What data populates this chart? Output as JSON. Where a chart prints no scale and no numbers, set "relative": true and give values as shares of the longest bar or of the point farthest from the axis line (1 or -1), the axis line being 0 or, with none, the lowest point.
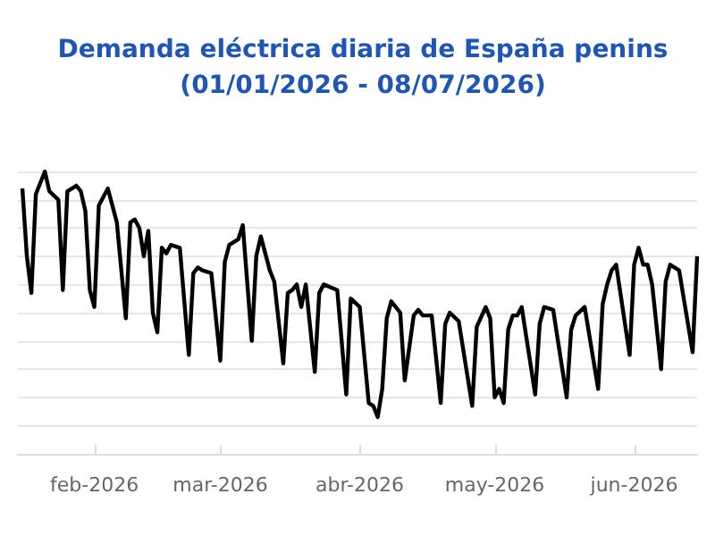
{
  "chart_data": {
    "type": "line",
    "title": "Demanda eléctrica diaria de España penins",
    "subtitle": "(01/01/2026 - 08/07/2026)",
    "relative": true,
    "grid": "y",
    "tick_labels": "x",
    "xlim": [
      "2026-01-15",
      "2026-06-15"
    ],
    "xticks": [
      {
        "value": "2026-02-01",
        "label": "feb-2026"
      },
      {
        "value": "2026-03-01",
        "label": "mar-2026"
      },
      {
        "value": "2026-04-01",
        "label": "abr-2026"
      },
      {
        "value": "2026-05-01",
        "label": "may-2026"
      },
      {
        "value": "2026-06-01",
        "label": "jun-2026"
      }
    ],
    "x": [
      "2026-01-16",
      "2026-01-17",
      "2026-01-18",
      "2026-01-19",
      "2026-01-21",
      "2026-01-22",
      "2026-01-24",
      "2026-01-25",
      "2026-01-26",
      "2026-01-28",
      "2026-01-29",
      "2026-01-30",
      "2026-01-31",
      "2026-02-01",
      "2026-02-02",
      "2026-02-04",
      "2026-02-06",
      "2026-02-08",
      "2026-02-09",
      "2026-02-10",
      "2026-02-11",
      "2026-02-12",
      "2026-02-13",
      "2026-02-14",
      "2026-02-15",
      "2026-02-16",
      "2026-02-17",
      "2026-02-18",
      "2026-02-20",
      "2026-02-22",
      "2026-02-23",
      "2026-02-24",
      "2026-02-25",
      "2026-02-27",
      "2026-03-01",
      "2026-03-02",
      "2026-03-03",
      "2026-03-05",
      "2026-03-06",
      "2026-03-08",
      "2026-03-09",
      "2026-03-10",
      "2026-03-12",
      "2026-03-13",
      "2026-03-15",
      "2026-03-16",
      "2026-03-17",
      "2026-03-18",
      "2026-03-19",
      "2026-03-20",
      "2026-03-22",
      "2026-03-23",
      "2026-03-24",
      "2026-03-27",
      "2026-03-29",
      "2026-03-30",
      "2026-04-01",
      "2026-04-03",
      "2026-04-04",
      "2026-04-05",
      "2026-04-06",
      "2026-04-07",
      "2026-04-08",
      "2026-04-10",
      "2026-04-11",
      "2026-04-13",
      "2026-04-14",
      "2026-04-15",
      "2026-04-17",
      "2026-04-19",
      "2026-04-20",
      "2026-04-21",
      "2026-04-23",
      "2026-04-26",
      "2026-04-27",
      "2026-04-29",
      "2026-04-30",
      "2026-05-01",
      "2026-05-02",
      "2026-05-03",
      "2026-05-04",
      "2026-05-05",
      "2026-05-06",
      "2026-05-07",
      "2026-05-10",
      "2026-05-11",
      "2026-05-12",
      "2026-05-14",
      "2026-05-17",
      "2026-05-18",
      "2026-05-19",
      "2026-05-21",
      "2026-05-24",
      "2026-05-25",
      "2026-05-26",
      "2026-05-27",
      "2026-05-28",
      "2026-05-31",
      "2026-06-01",
      "2026-06-02",
      "2026-06-03",
      "2026-06-04",
      "2026-06-05",
      "2026-06-07",
      "2026-06-08",
      "2026-06-09",
      "2026-06-11",
      "2026-06-14",
      "2026-06-15"
    ],
    "series": [
      {
        "color": "#000000",
        "values": [
          0.94,
          0.7,
          0.57,
          0.92,
          1.0,
          0.93,
          0.9,
          0.58,
          0.93,
          0.95,
          0.93,
          0.86,
          0.58,
          0.52,
          0.88,
          0.94,
          0.82,
          0.48,
          0.82,
          0.83,
          0.8,
          0.7,
          0.79,
          0.5,
          0.43,
          0.73,
          0.71,
          0.74,
          0.73,
          0.35,
          0.64,
          0.66,
          0.65,
          0.64,
          0.33,
          0.68,
          0.74,
          0.76,
          0.81,
          0.4,
          0.7,
          0.77,
          0.65,
          0.61,
          0.32,
          0.57,
          0.58,
          0.6,
          0.52,
          0.6,
          0.29,
          0.57,
          0.6,
          0.58,
          0.21,
          0.55,
          0.52,
          0.18,
          0.17,
          0.13,
          0.23,
          0.48,
          0.54,
          0.5,
          0.26,
          0.49,
          0.51,
          0.49,
          0.49,
          0.18,
          0.46,
          0.5,
          0.47,
          0.17,
          0.45,
          0.52,
          0.48,
          0.2,
          0.23,
          0.18,
          0.44,
          0.49,
          0.49,
          0.52,
          0.21,
          0.46,
          0.52,
          0.51,
          0.2,
          0.44,
          0.49,
          0.52,
          0.23,
          0.53,
          0.6,
          0.65,
          0.67,
          0.35,
          0.67,
          0.73,
          0.67,
          0.67,
          0.6,
          0.3,
          0.61,
          0.67,
          0.65,
          0.36,
          0.7
        ]
      }
    ]
  }
}
